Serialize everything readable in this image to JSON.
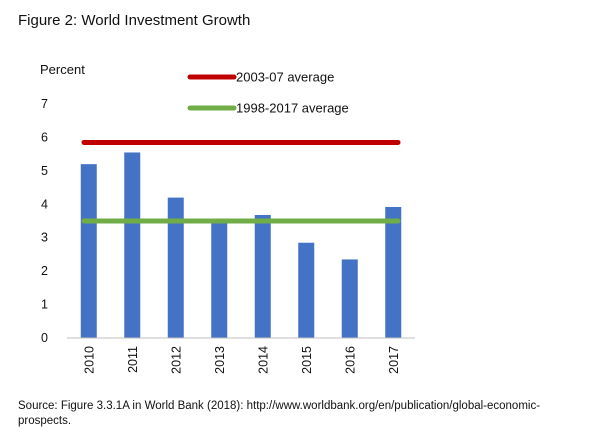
{
  "figure_title": "Figure 2: World Investment Growth",
  "source_note": "Source: Figure 3.3.1A in World Bank (2018): http://www.worldbank.org/en/publication/global-economic-prospects.",
  "chart_data": {
    "type": "bar",
    "unit_label": "Percent",
    "categories": [
      "2010",
      "2011",
      "2012",
      "2013",
      "2014",
      "2015",
      "2016",
      "2017"
    ],
    "values": [
      5.2,
      5.55,
      4.2,
      3.45,
      3.68,
      2.85,
      2.35,
      3.92
    ],
    "bar_color": "#4472C4",
    "ylim": [
      0,
      7
    ],
    "yticks": [
      "0",
      "1",
      "2",
      "3",
      "4",
      "5",
      "6",
      "7"
    ],
    "grid": false,
    "reference_lines": [
      {
        "name": "2003-07 average",
        "value": 5.85,
        "color": "#C00000"
      },
      {
        "name": "1998-2017 average",
        "value": 3.5,
        "color": "#70AD47"
      }
    ],
    "legend_position": "top-right"
  }
}
